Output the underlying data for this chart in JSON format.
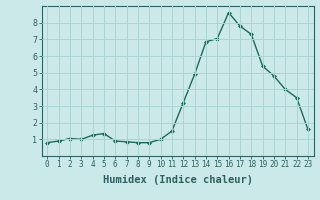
{
  "x": [
    0,
    1,
    2,
    3,
    4,
    5,
    6,
    7,
    8,
    9,
    10,
    11,
    12,
    13,
    14,
    15,
    16,
    17,
    18,
    19,
    20,
    21,
    22,
    23
  ],
  "y": [
    0.8,
    0.9,
    1.05,
    1.0,
    1.25,
    1.35,
    0.9,
    0.85,
    0.8,
    0.8,
    1.0,
    1.5,
    3.2,
    4.9,
    6.85,
    7.05,
    8.6,
    7.8,
    7.3,
    5.4,
    4.8,
    4.0,
    3.5,
    1.6
  ],
  "line_color": "#1a6b5a",
  "marker": "D",
  "marker_size": 2.0,
  "bg_color": "#cce9e9",
  "grid_color": "#aad4d4",
  "axis_color": "#2d6060",
  "tick_color": "#2d6060",
  "xlabel": "Humidex (Indice chaleur)",
  "xlim": [
    -0.5,
    23.5
  ],
  "ylim": [
    0,
    9
  ],
  "yticks": [
    1,
    2,
    3,
    4,
    5,
    6,
    7,
    8
  ],
  "xticks": [
    0,
    1,
    2,
    3,
    4,
    5,
    6,
    7,
    8,
    9,
    10,
    11,
    12,
    13,
    14,
    15,
    16,
    17,
    18,
    19,
    20,
    21,
    22,
    23
  ],
  "xlabel_fontsize": 7.5,
  "tick_fontsize": 5.5,
  "linewidth": 1.0
}
